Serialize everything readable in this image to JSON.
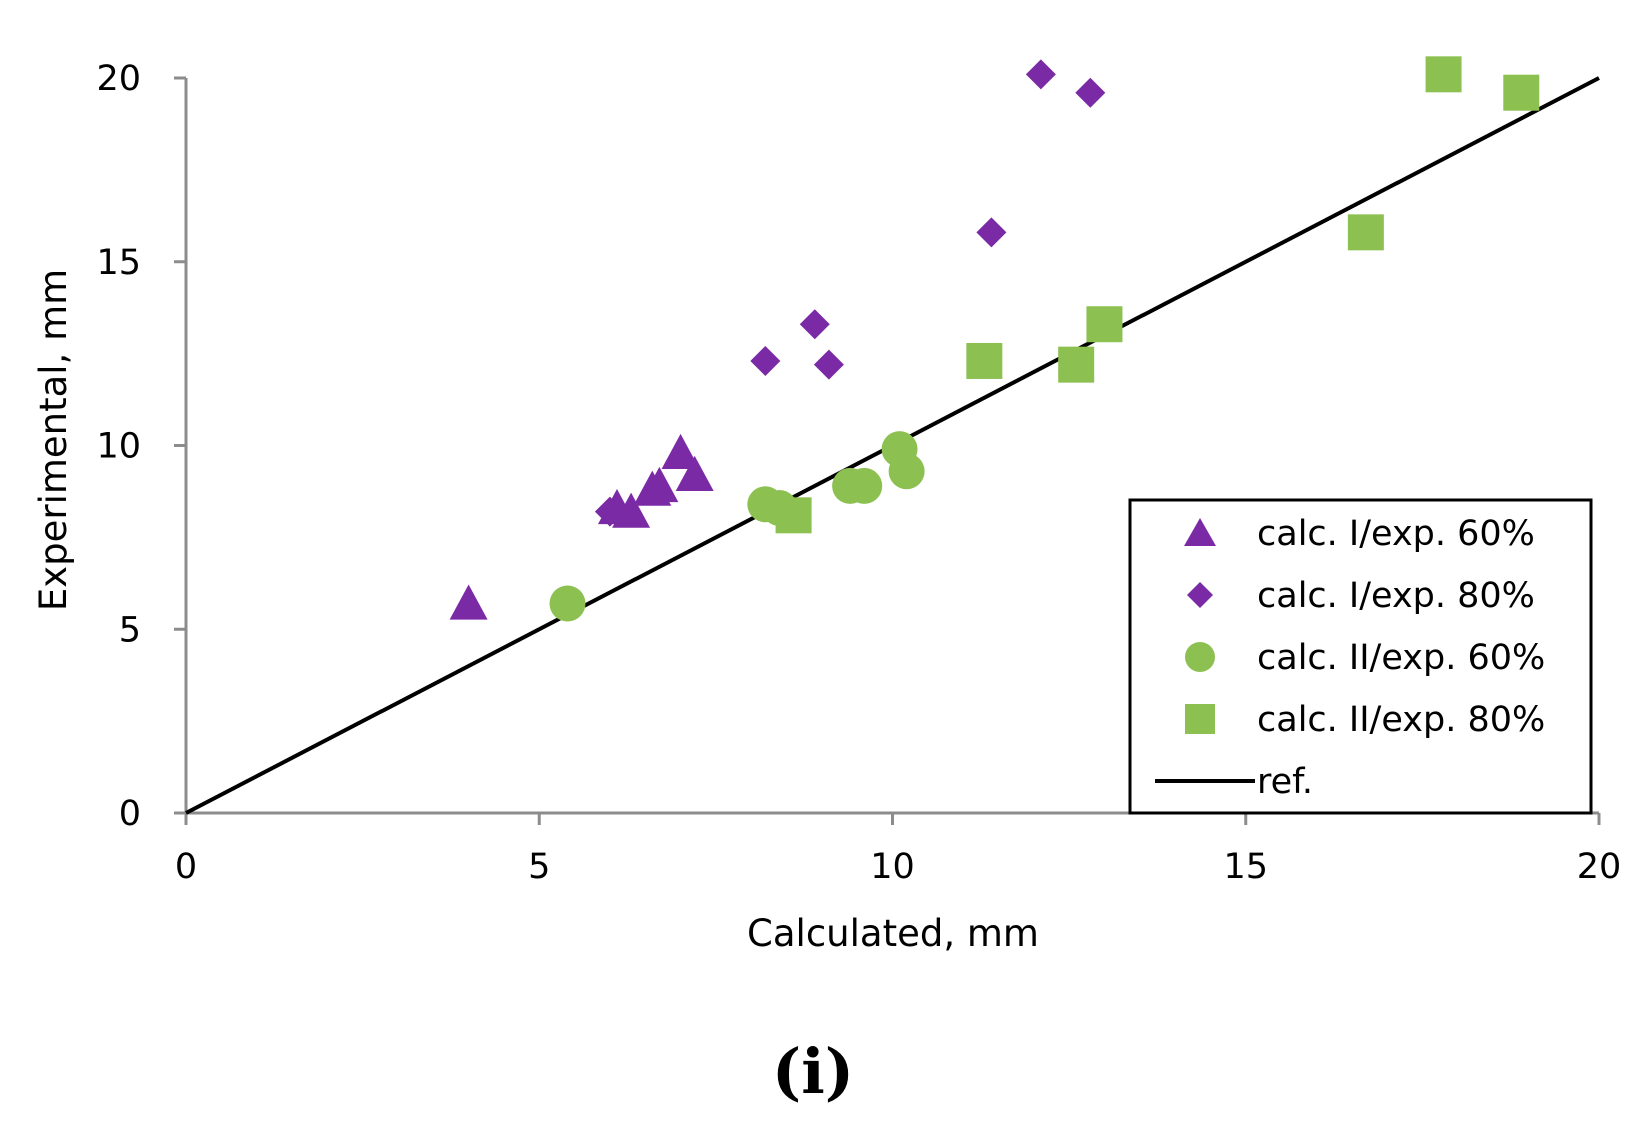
{
  "chart_data": {
    "type": "scatter",
    "title": "",
    "xlabel": "Calculated, mm",
    "ylabel": "Experimental, mm",
    "xlim": [
      0,
      20
    ],
    "ylim": [
      0,
      20
    ],
    "xticks": [
      0,
      5,
      10,
      15,
      20
    ],
    "yticks": [
      0,
      5,
      10,
      15,
      20
    ],
    "grid": false,
    "legend_position": "bottom-right",
    "series": [
      {
        "name": "calc. I/exp. 60%",
        "marker": "triangle",
        "color": "#7b2aa6",
        "points": [
          [
            4.0,
            5.7
          ],
          [
            6.1,
            8.3
          ],
          [
            6.3,
            8.2
          ],
          [
            6.6,
            8.8
          ],
          [
            6.7,
            8.9
          ],
          [
            7.0,
            9.8
          ],
          [
            7.2,
            9.2
          ]
        ]
      },
      {
        "name": "calc. I/exp. 80%",
        "marker": "diamond",
        "color": "#7b2aa6",
        "points": [
          [
            6.0,
            8.2
          ],
          [
            8.2,
            12.3
          ],
          [
            8.9,
            13.3
          ],
          [
            9.1,
            12.2
          ],
          [
            11.4,
            15.8
          ],
          [
            12.1,
            20.1
          ],
          [
            12.8,
            19.6
          ]
        ]
      },
      {
        "name": "calc. II/exp. 60%",
        "marker": "circle",
        "color": "#8cc152",
        "points": [
          [
            5.4,
            5.7
          ],
          [
            8.2,
            8.4
          ],
          [
            8.4,
            8.3
          ],
          [
            9.4,
            8.9
          ],
          [
            9.6,
            8.9
          ],
          [
            10.1,
            9.9
          ],
          [
            10.2,
            9.3
          ]
        ]
      },
      {
        "name": "calc. II/exp. 80%",
        "marker": "square",
        "color": "#8cc152",
        "points": [
          [
            8.6,
            8.1
          ],
          [
            11.3,
            12.3
          ],
          [
            12.6,
            12.2
          ],
          [
            13.0,
            13.3
          ],
          [
            16.7,
            15.8
          ],
          [
            17.8,
            20.1
          ],
          [
            18.9,
            19.6
          ]
        ]
      },
      {
        "name": "ref.",
        "marker": "line",
        "color": "#000000",
        "points": [
          [
            0,
            0
          ],
          [
            20,
            20
          ]
        ]
      }
    ]
  },
  "panel_label": "(i)"
}
